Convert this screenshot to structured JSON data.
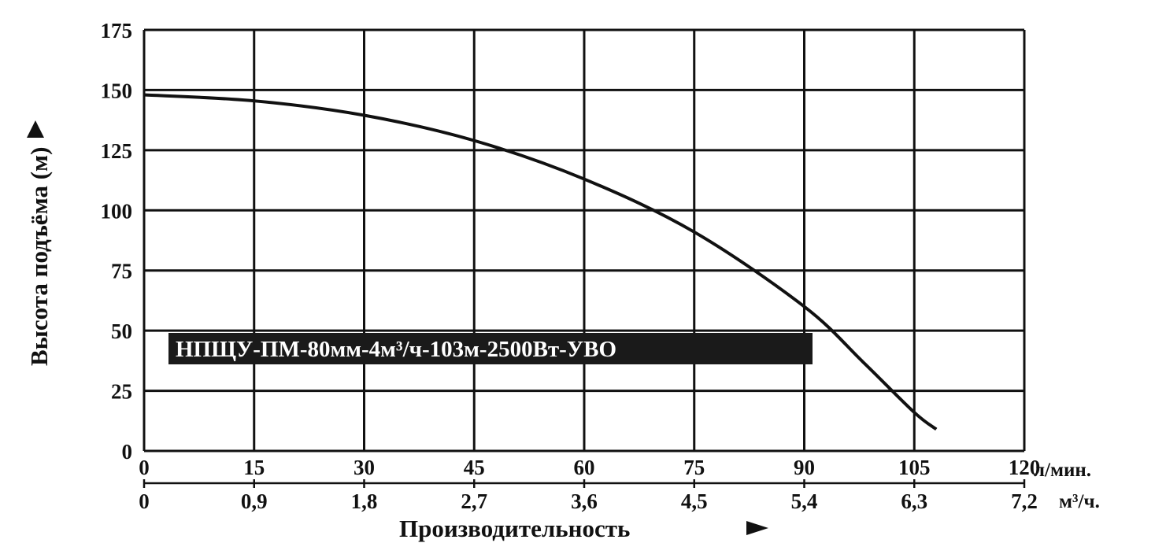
{
  "chart_data": {
    "type": "line",
    "ylabel": "Высота подъёма (м)",
    "xlabel": "Производительность",
    "x_unit": "л/мин.",
    "x2_unit": "м³/ч.",
    "xlim": [
      0,
      120
    ],
    "ylim": [
      0,
      175
    ],
    "grid": true,
    "x_ticks": [
      "0",
      "15",
      "30",
      "45",
      "60",
      "75",
      "90",
      "105",
      "120"
    ],
    "x2_ticks": [
      "0",
      "0,9",
      "1,8",
      "2,7",
      "3,6",
      "4,5",
      "5,4",
      "6,3",
      "7,2"
    ],
    "y_ticks": [
      "0",
      "25",
      "50",
      "75",
      "100",
      "125",
      "150",
      "175"
    ],
    "annotation": "НПЩУ-ПМ-80мм-4м³/ч-103м-2500Вт-УВО",
    "series": [
      {
        "x": [
          0,
          15,
          30,
          45,
          60,
          75,
          90,
          98,
          105,
          108
        ],
        "y": [
          148,
          145.5,
          139.5,
          129,
          113,
          91,
          60,
          37,
          16,
          9
        ]
      }
    ],
    "colors": {
      "line": "#111111",
      "grid": "#111111",
      "legend_bg": "#1a1a1a"
    }
  }
}
